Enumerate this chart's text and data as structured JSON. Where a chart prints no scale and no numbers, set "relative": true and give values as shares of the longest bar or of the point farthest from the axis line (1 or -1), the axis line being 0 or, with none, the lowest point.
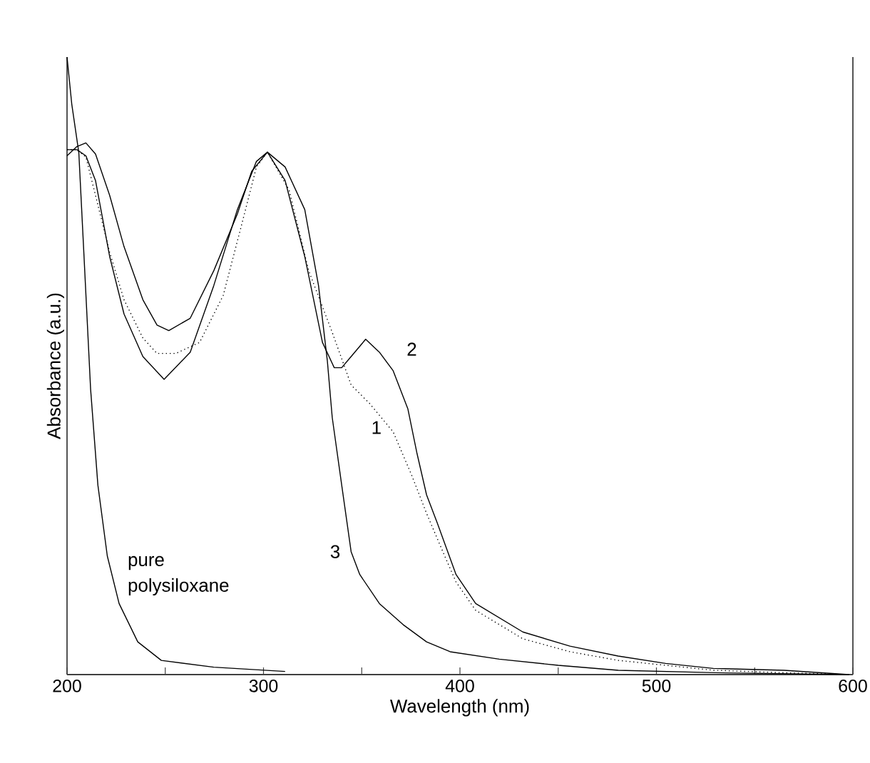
{
  "chart_data": {
    "type": "line",
    "relative": true,
    "xlabel": "Wavelength (nm)",
    "ylabel": "Absorbance (a.u.)",
    "xlim": [
      200,
      600
    ],
    "xticks": [
      200,
      {
        "value": 250,
        "label": null
      },
      300,
      {
        "value": 350,
        "label": null
      },
      400,
      {
        "value": 450,
        "label": null
      },
      500,
      {
        "value": 550,
        "label": null
      },
      600
    ],
    "grid": false,
    "legend": false,
    "marker": "none",
    "series": [
      {
        "name": "1",
        "color": "#000000",
        "line_style": "dotted",
        "x": [
          200,
          205,
          209.6,
          214.5,
          221.7,
          229,
          238.6,
          245.8,
          255.4,
          267.5,
          279.5,
          289,
          296.4,
          302,
          313,
          323,
          335,
          344.6,
          354,
          366,
          375.4,
          383,
          392.5,
          398,
          408,
          432,
          456,
          480.5,
          529,
          565,
          598
        ],
        "values": [
          0.85,
          0.85,
          0.838,
          0.776,
          0.684,
          0.607,
          0.545,
          0.52,
          0.52,
          0.538,
          0.614,
          0.73,
          0.822,
          0.846,
          0.785,
          0.654,
          0.554,
          0.469,
          0.439,
          0.393,
          0.323,
          0.261,
          0.19,
          0.15,
          0.104,
          0.058,
          0.037,
          0.023,
          0.007,
          0.003,
          0
        ]
      },
      {
        "name": "2",
        "color": "#000000",
        "line_style": "solid",
        "x": [
          200,
          205,
          209.6,
          214.5,
          221.7,
          229,
          238.6,
          249.4,
          262.7,
          274.7,
          286.7,
          296.4,
          302,
          311,
          321,
          330,
          336,
          339.8,
          344.6,
          352,
          359,
          366,
          373.5,
          378,
          383,
          388.5,
          398,
          408,
          432,
          456,
          480.5,
          504.7,
          529,
          565,
          598
        ],
        "values": [
          0.85,
          0.85,
          0.84,
          0.8,
          0.677,
          0.584,
          0.515,
          0.478,
          0.522,
          0.63,
          0.753,
          0.831,
          0.846,
          0.8,
          0.677,
          0.538,
          0.497,
          0.497,
          0.515,
          0.543,
          0.522,
          0.492,
          0.43,
          0.36,
          0.291,
          0.245,
          0.162,
          0.115,
          0.069,
          0.046,
          0.03,
          0.018,
          0.01,
          0.007,
          0
        ]
      },
      {
        "name": "3",
        "color": "#000000",
        "line_style": "solid",
        "x": [
          200,
          205,
          209.6,
          214.5,
          221.7,
          229,
          238.6,
          245.8,
          251.8,
          262.7,
          274.7,
          286.7,
          294,
          302,
          311,
          321,
          328,
          332.5,
          335,
          339.8,
          344.6,
          349,
          359,
          371,
          383,
          395,
          420,
          450,
          480.6,
          530,
          598
        ],
        "values": [
          0.84,
          0.855,
          0.861,
          0.843,
          0.776,
          0.693,
          0.607,
          0.566,
          0.557,
          0.577,
          0.654,
          0.746,
          0.815,
          0.846,
          0.822,
          0.753,
          0.63,
          0.508,
          0.416,
          0.307,
          0.199,
          0.162,
          0.115,
          0.081,
          0.053,
          0.037,
          0.025,
          0.015,
          0.007,
          0.003,
          0
        ]
      },
      {
        "name": "pure polysiloxane",
        "color": "#000000",
        "line_style": "solid",
        "x": [
          200,
          202.4,
          206,
          208.4,
          212,
          215.7,
          220.5,
          226.5,
          236,
          248,
          274.7,
          311
        ],
        "values": [
          1.0,
          0.924,
          0.845,
          0.693,
          0.462,
          0.307,
          0.192,
          0.115,
          0.053,
          0.023,
          0.012,
          0.005
        ]
      }
    ]
  }
}
